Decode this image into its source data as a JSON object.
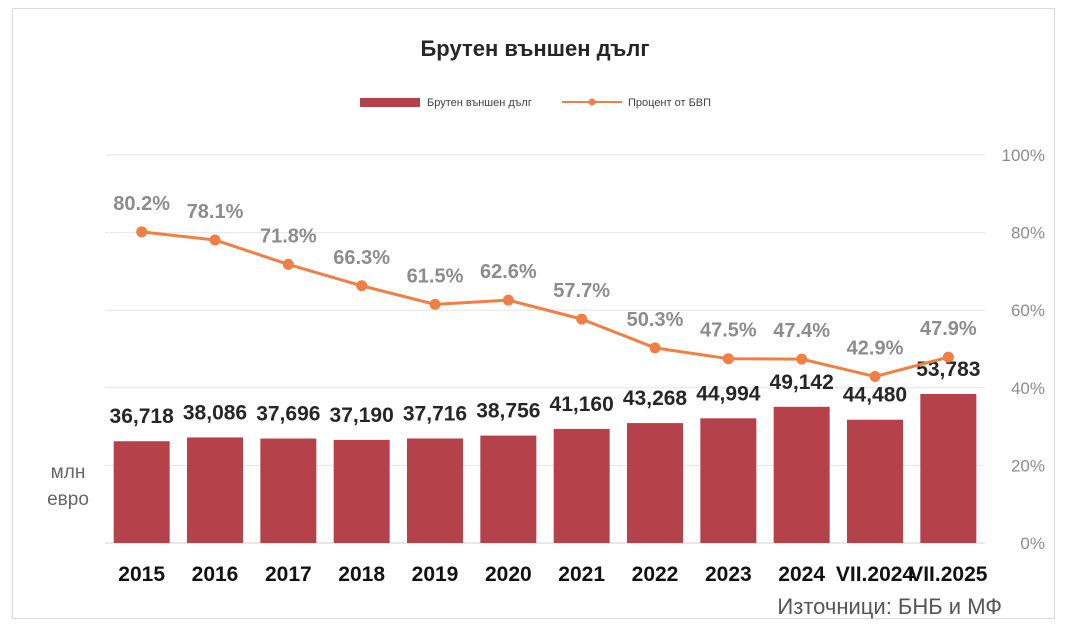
{
  "chart_data": {
    "type": "bar",
    "title": "Брутен външен дълг",
    "categories": [
      "2015",
      "2016",
      "2017",
      "2018",
      "2019",
      "2020",
      "2021",
      "2022",
      "2023",
      "2024",
      "VII.2024",
      "VII.2025"
    ],
    "series": [
      {
        "name": "Брутен външен дълг",
        "type": "bar",
        "axis": "left",
        "color": "#b5424a",
        "values": [
          36718,
          38086,
          37696,
          37190,
          37716,
          38756,
          41160,
          43268,
          44994,
          49142,
          44480,
          53783
        ],
        "labels": [
          "36,718",
          "38,086",
          "37,696",
          "37,190",
          "37,716",
          "38,756",
          "41,160",
          "43,268",
          "44,994",
          "49,142",
          "44,480",
          "53,783"
        ]
      },
      {
        "name": "Процент от БВП",
        "type": "line",
        "axis": "right",
        "color": "#f07f45",
        "values": [
          80.2,
          78.1,
          71.8,
          66.3,
          61.5,
          62.6,
          57.7,
          50.3,
          47.5,
          47.4,
          42.9,
          47.9
        ],
        "labels": [
          "80.2%",
          "78.1%",
          "71.8%",
          "66.3%",
          "61.5%",
          "62.6%",
          "57.7%",
          "50.3%",
          "47.5%",
          "47.4%",
          "42.9%",
          "47.9%"
        ]
      }
    ],
    "y_left_unit": "млн евро",
    "y_left_lim": [
      0,
      140000
    ],
    "y_right_lim": [
      0,
      100
    ],
    "y_right_ticks": [
      "100%",
      "80%",
      "60%",
      "40%",
      "20%",
      "0%"
    ],
    "y_right_tick_values": [
      100,
      80,
      60,
      40,
      20,
      0
    ],
    "grid": true,
    "legend_position": "top"
  },
  "source": "Източници: БНБ и МФ",
  "unit_label_line1": "млн",
  "unit_label_line2": "евро"
}
